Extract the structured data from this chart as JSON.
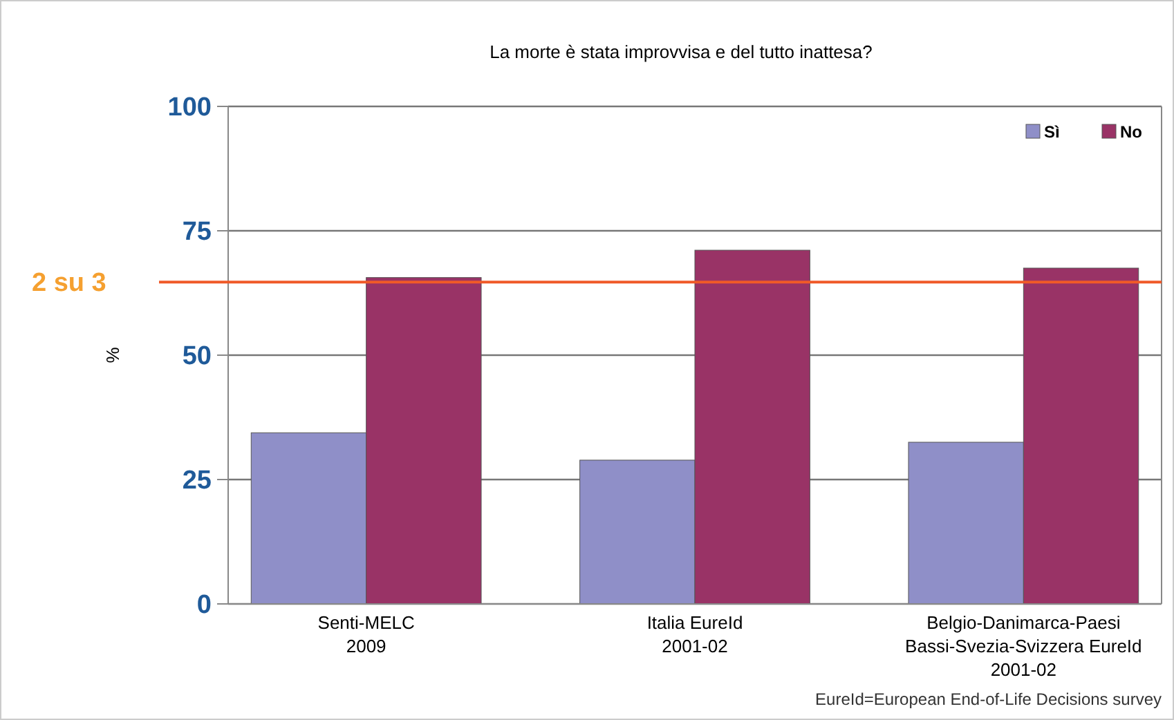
{
  "chart_data": {
    "type": "bar",
    "title": "La morte è stata improvvisa e del tutto inattesa?",
    "ylabel": "%",
    "categories": [
      "Senti-MELC\n2009",
      "Italia EureId\n2001-02",
      "Belgio-Danimarca-Paesi\nBassi-Svezia-Svizzera EureId\n2001-02"
    ],
    "series": [
      {
        "name": "Sì",
        "color": "#8f8fc8",
        "values": [
          34.4,
          28.9,
          32.5
        ]
      },
      {
        "name": "No",
        "color": "#993366",
        "values": [
          65.6,
          71.1,
          67.5
        ]
      }
    ],
    "ylim": [
      0,
      100
    ],
    "yticks": [
      0,
      25,
      50,
      75,
      100
    ],
    "grid": "y",
    "legend": "top right",
    "ref_lines": [
      {
        "axis": "y",
        "value": 64.7,
        "label": "2 su 3",
        "color": "#f05a28"
      }
    ],
    "annotations": [
      "EureId=European End-of-Life Decisions survey"
    ]
  }
}
